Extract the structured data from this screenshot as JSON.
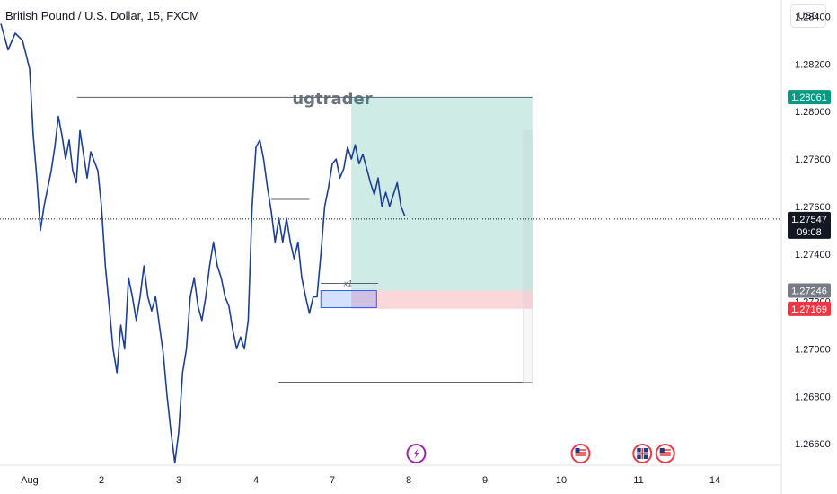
{
  "header": {
    "title": "British Pound / U.S. Dollar, 15, FXCM",
    "currency": "USD"
  },
  "watermark": "ugtrader",
  "chart_data": {
    "type": "line",
    "symbol": "GBPUSD",
    "timeframe": "15",
    "ylim": [
      1.2651,
      1.2847
    ],
    "y_ticks": [
      1.284,
      1.282,
      1.28,
      1.278,
      1.276,
      1.274,
      1.272,
      1.27,
      1.268,
      1.266
    ],
    "y_tick_labels": [
      "1.28400",
      "1.28200",
      "1.28000",
      "1.27800",
      "1.27600",
      "1.27400",
      "1.27200",
      "1.27000",
      "1.26800",
      "1.26600"
    ],
    "x_labels": [
      {
        "label": "Aug",
        "x": 0
      },
      {
        "label": "2",
        "x": 1
      },
      {
        "label": "3",
        "x": 2
      },
      {
        "label": "4",
        "x": 3
      },
      {
        "label": "7",
        "x": 4
      },
      {
        "label": "8",
        "x": 5
      },
      {
        "label": "9",
        "x": 6
      },
      {
        "label": "10",
        "x": 7
      },
      {
        "label": "11",
        "x": 8
      },
      {
        "label": "14",
        "x": 9
      }
    ],
    "series": [
      {
        "color": "#1c3f9a",
        "points": [
          [
            -0.4,
            1.2837
          ],
          [
            -0.3,
            1.2826
          ],
          [
            -0.2,
            1.2833
          ],
          [
            -0.1,
            1.283
          ],
          [
            0.0,
            1.2818
          ],
          [
            0.05,
            1.279
          ],
          [
            0.1,
            1.2772
          ],
          [
            0.15,
            1.275
          ],
          [
            0.2,
            1.276
          ],
          [
            0.3,
            1.2775
          ],
          [
            0.35,
            1.2785
          ],
          [
            0.4,
            1.2798
          ],
          [
            0.45,
            1.279
          ],
          [
            0.5,
            1.278
          ],
          [
            0.55,
            1.2788
          ],
          [
            0.6,
            1.2775
          ],
          [
            0.65,
            1.277
          ],
          [
            0.7,
            1.2792
          ],
          [
            0.75,
            1.2782
          ],
          [
            0.8,
            1.2772
          ],
          [
            0.85,
            1.2783
          ],
          [
            0.95,
            1.2775
          ],
          [
            1.0,
            1.276
          ],
          [
            1.05,
            1.2735
          ],
          [
            1.1,
            1.2718
          ],
          [
            1.15,
            1.27
          ],
          [
            1.2,
            1.269
          ],
          [
            1.25,
            1.271
          ],
          [
            1.3,
            1.27
          ],
          [
            1.35,
            1.273
          ],
          [
            1.4,
            1.2722
          ],
          [
            1.45,
            1.2712
          ],
          [
            1.5,
            1.2722
          ],
          [
            1.55,
            1.2735
          ],
          [
            1.6,
            1.2722
          ],
          [
            1.65,
            1.2716
          ],
          [
            1.7,
            1.2722
          ],
          [
            1.75,
            1.271
          ],
          [
            1.8,
            1.2698
          ],
          [
            1.85,
            1.268
          ],
          [
            1.9,
            1.2665
          ],
          [
            1.95,
            1.2652
          ],
          [
            2.0,
            1.2665
          ],
          [
            2.05,
            1.269
          ],
          [
            2.1,
            1.27
          ],
          [
            2.15,
            1.2722
          ],
          [
            2.2,
            1.273
          ],
          [
            2.25,
            1.2718
          ],
          [
            2.3,
            1.2712
          ],
          [
            2.35,
            1.2722
          ],
          [
            2.4,
            1.2735
          ],
          [
            2.45,
            1.2745
          ],
          [
            2.5,
            1.2735
          ],
          [
            2.55,
            1.273
          ],
          [
            2.6,
            1.2722
          ],
          [
            2.65,
            1.2718
          ],
          [
            2.7,
            1.2708
          ],
          [
            2.75,
            1.27
          ],
          [
            2.8,
            1.2705
          ],
          [
            2.85,
            1.27
          ],
          [
            2.9,
            1.2712
          ],
          [
            2.95,
            1.276
          ],
          [
            3.0,
            1.2785
          ],
          [
            3.05,
            1.2788
          ],
          [
            3.1,
            1.278
          ],
          [
            3.15,
            1.2768
          ],
          [
            3.2,
            1.2758
          ],
          [
            3.25,
            1.2745
          ],
          [
            3.3,
            1.2755
          ],
          [
            3.35,
            1.2745
          ],
          [
            3.4,
            1.2755
          ],
          [
            3.45,
            1.2745
          ],
          [
            3.5,
            1.2738
          ],
          [
            3.55,
            1.2745
          ],
          [
            3.6,
            1.273
          ],
          [
            3.65,
            1.2722
          ],
          [
            3.7,
            1.2715
          ],
          [
            3.75,
            1.2722
          ],
          [
            3.8,
            1.2722
          ],
          [
            3.85,
            1.274
          ],
          [
            3.9,
            1.276
          ],
          [
            3.95,
            1.2768
          ],
          [
            4.0,
            1.2778
          ],
          [
            4.05,
            1.278
          ],
          [
            4.1,
            1.2772
          ],
          [
            4.15,
            1.2776
          ],
          [
            4.2,
            1.2785
          ],
          [
            4.25,
            1.278
          ],
          [
            4.3,
            1.2786
          ],
          [
            4.35,
            1.2778
          ],
          [
            4.4,
            1.2782
          ],
          [
            4.45,
            1.2776
          ],
          [
            4.5,
            1.277
          ],
          [
            4.55,
            1.2765
          ],
          [
            4.6,
            1.2772
          ],
          [
            4.65,
            1.276
          ],
          [
            4.7,
            1.2766
          ],
          [
            4.75,
            1.276
          ],
          [
            4.8,
            1.2765
          ],
          [
            4.85,
            1.277
          ],
          [
            4.9,
            1.276
          ],
          [
            4.95,
            1.2756
          ]
        ]
      }
    ],
    "annotations": {
      "range_high": 1.2806,
      "range_low": 1.2686,
      "mid_level": 1.2763,
      "entry": 1.27246,
      "stop": 1.27169,
      "target": 1.28061,
      "demand_zone": [
        1.27174,
        1.27246
      ],
      "current_price": 1.27547,
      "x1_label": "x1"
    },
    "price_labels": [
      {
        "value": "1.28061",
        "color": "#089981"
      },
      {
        "value": "1.27547",
        "color": "#131722",
        "countdown": "09:08"
      },
      {
        "value": "1.27246",
        "color": "#787b86"
      },
      {
        "value": "1.27169",
        "color": "#f23645"
      }
    ],
    "events": [
      {
        "type": "lightning",
        "color": "#9c27b0",
        "x": 5.1
      },
      {
        "type": "flag-us",
        "x": 7.25
      },
      {
        "type": "flag-gb",
        "x": 8.05
      },
      {
        "type": "flag-us",
        "x": 8.35
      }
    ]
  }
}
